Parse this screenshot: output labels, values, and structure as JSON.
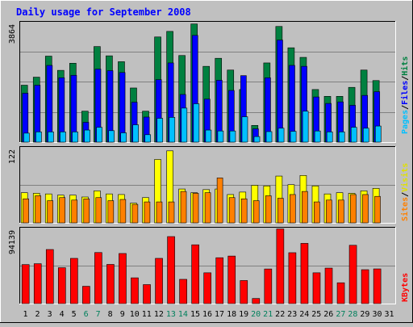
{
  "title": "Daily usage for September 2008",
  "colors": {
    "background": "#c0c0c0",
    "plot_bg": "#c0c0c0",
    "hits": "#008040",
    "files": "#0000ff",
    "pages": "#00c0ff",
    "visits": "#ffff00",
    "sites": "#ff8000",
    "kbytes": "#ff0000",
    "title_text": "#0000ff",
    "weekend_label": "#00805c",
    "weekday_label": "#000000"
  },
  "right_labels": {
    "top": [
      {
        "text": "Pages",
        "color": "#00c0ff"
      },
      {
        "text": "/",
        "color": "#000000"
      },
      {
        "text": "Files",
        "color": "#0000ff"
      },
      {
        "text": "/",
        "color": "#000000"
      },
      {
        "text": "Hits",
        "color": "#008040"
      }
    ],
    "middle": [
      {
        "text": "Sites",
        "color": "#ff8000"
      },
      {
        "text": "/",
        "color": "#000000"
      },
      {
        "text": "Visits",
        "color": "#e0e000"
      }
    ],
    "bottom": [
      {
        "text": "KBytes",
        "color": "#ff0000"
      }
    ]
  },
  "chart_data": [
    {
      "type": "bar",
      "panel": "hits-files-pages",
      "y_max_label": "3864",
      "ylim": [
        0,
        3864
      ],
      "categories": [
        "1",
        "2",
        "3",
        "4",
        "5",
        "6",
        "7",
        "8",
        "9",
        "10",
        "11",
        "12",
        "13",
        "14",
        "15",
        "16",
        "17",
        "18",
        "19",
        "20",
        "21",
        "22",
        "23",
        "24",
        "25",
        "26",
        "27",
        "28",
        "29",
        "30",
        "31"
      ],
      "weekend": [
        false,
        false,
        false,
        false,
        false,
        true,
        true,
        false,
        false,
        false,
        false,
        false,
        true,
        true,
        false,
        false,
        false,
        false,
        false,
        true,
        true,
        false,
        false,
        false,
        false,
        false,
        true,
        true,
        false,
        false,
        false
      ],
      "series": [
        {
          "name": "Hits",
          "values": [
            1840,
            2100,
            2780,
            2320,
            2550,
            1000,
            3090,
            2790,
            2600,
            1750,
            1000,
            3400,
            3580,
            2800,
            3820,
            2450,
            2710,
            2330,
            1700,
            540,
            2560,
            3740,
            3050,
            2740,
            1700,
            1480,
            1480,
            1770,
            2330,
            1990,
            0
          ]
        },
        {
          "name": "Files",
          "values": [
            1580,
            1840,
            2480,
            2080,
            2160,
            640,
            2360,
            2310,
            2250,
            1290,
            810,
            2020,
            2560,
            1540,
            3450,
            1390,
            2000,
            1670,
            2150,
            430,
            2080,
            3300,
            2480,
            2450,
            1460,
            1250,
            1300,
            1190,
            1510,
            1630,
            0
          ]
        },
        {
          "name": "Pages",
          "values": [
            290,
            330,
            330,
            330,
            330,
            390,
            480,
            370,
            300,
            560,
            240,
            770,
            800,
            1100,
            1240,
            390,
            360,
            360,
            820,
            180,
            340,
            450,
            350,
            1000,
            360,
            330,
            330,
            480,
            450,
            520,
            0
          ]
        }
      ]
    },
    {
      "type": "bar",
      "panel": "visits-sites",
      "y_max_label": "122",
      "ylim": [
        0,
        122
      ],
      "categories": [
        "1",
        "2",
        "3",
        "4",
        "5",
        "6",
        "7",
        "8",
        "9",
        "10",
        "11",
        "12",
        "13",
        "14",
        "15",
        "16",
        "17",
        "18",
        "19",
        "20",
        "21",
        "22",
        "23",
        "24",
        "25",
        "26",
        "27",
        "28",
        "29",
        "30",
        "31"
      ],
      "series": [
        {
          "name": "Visits",
          "values": [
            49,
            48,
            47,
            45,
            45,
            42,
            52,
            47,
            46,
            32,
            41,
            103,
            117,
            55,
            49,
            54,
            55,
            46,
            50,
            61,
            60,
            76,
            62,
            77,
            60,
            47,
            49,
            48,
            52,
            56,
            0
          ]
        },
        {
          "name": "Sites",
          "values": [
            39,
            44,
            36,
            41,
            37,
            39,
            41,
            36,
            38,
            30,
            34,
            34,
            34,
            51,
            48,
            49,
            73,
            41,
            39,
            36,
            44,
            40,
            46,
            51,
            34,
            37,
            37,
            46,
            46,
            43,
            0
          ]
        }
      ]
    },
    {
      "type": "bar",
      "panel": "kbytes",
      "y_max_label": "94139",
      "ylim": [
        0,
        94139
      ],
      "categories": [
        "1",
        "2",
        "3",
        "4",
        "5",
        "6",
        "7",
        "8",
        "9",
        "10",
        "11",
        "12",
        "13",
        "14",
        "15",
        "16",
        "17",
        "18",
        "19",
        "20",
        "21",
        "22",
        "23",
        "24",
        "25",
        "26",
        "27",
        "28",
        "29",
        "30",
        "31"
      ],
      "series": [
        {
          "name": "KBytes",
          "values": [
            48900,
            50000,
            67800,
            45000,
            56700,
            21700,
            64000,
            49100,
            62800,
            32300,
            23800,
            56700,
            84000,
            30400,
            73700,
            38600,
            57500,
            59600,
            28900,
            6400,
            43400,
            93600,
            63800,
            75500,
            38600,
            44500,
            26100,
            73100,
            42500,
            43500,
            0
          ]
        }
      ]
    }
  ]
}
